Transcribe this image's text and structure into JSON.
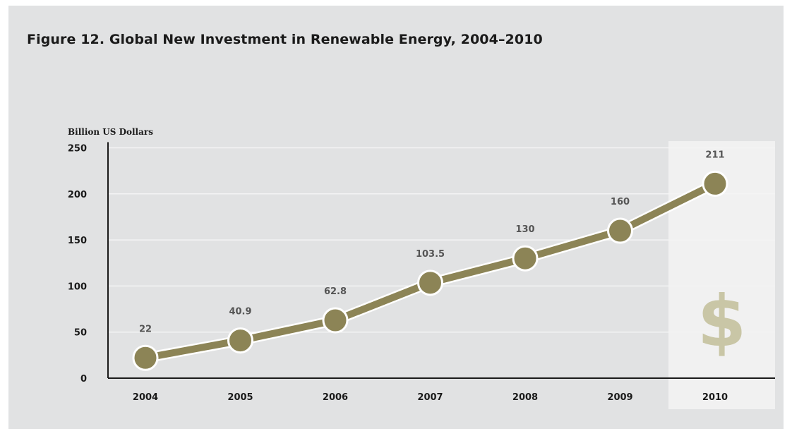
{
  "chart_data": {
    "type": "line",
    "title": "Figure 12. Global New Investment in Renewable Energy, 2004–2010",
    "ylabel": "Billion US Dollars",
    "xlabel": "",
    "ylim": [
      0,
      250
    ],
    "yticks": [
      "0",
      "50",
      "100",
      "150",
      "200",
      "250"
    ],
    "categories": [
      "2004",
      "2005",
      "2006",
      "2007",
      "2008",
      "2009",
      "2010"
    ],
    "series": [
      {
        "values": [
          22,
          40.9,
          62.8,
          103.5,
          130,
          160,
          211
        ],
        "data_labels": [
          "22",
          "40.9",
          "62.8",
          "103.5",
          "130",
          "160",
          "211"
        ],
        "color": "#8c8456"
      }
    ],
    "grid": true,
    "highlight": {
      "category": "2010",
      "symbol": "$"
    }
  },
  "colors": {
    "background": "#e1e2e3",
    "highlight_band": "#f1f1f1",
    "line": "#8c8456",
    "marker_outline": "#ffffff",
    "dollar_symbol": "#c9c6a6"
  }
}
